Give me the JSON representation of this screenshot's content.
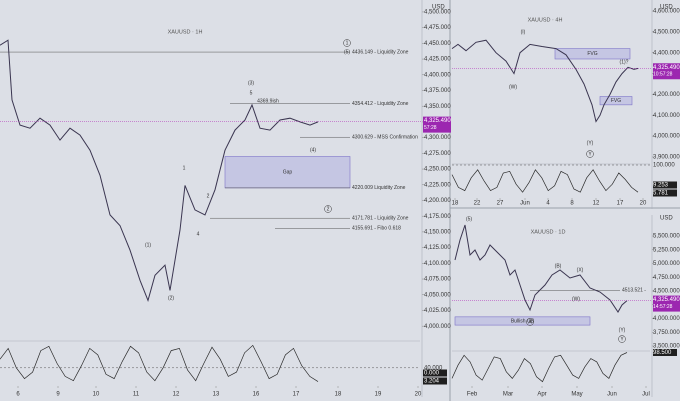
{
  "chart_data": [
    {
      "type": "line",
      "title": "XAUUSD · 1H",
      "currency": "USD",
      "color": "#3a3550",
      "xlim": [
        0,
        105
      ],
      "ylim": [
        3978,
        4519
      ],
      "xticks": [
        {
          "value": 4.5,
          "label": "6"
        },
        {
          "value": 14.5,
          "label": "9"
        },
        {
          "value": 24,
          "label": "10"
        },
        {
          "value": 34,
          "label": "11"
        },
        {
          "value": 44,
          "label": "12"
        },
        {
          "value": 54,
          "label": "13"
        },
        {
          "value": 64,
          "label": "16"
        },
        {
          "value": 74,
          "label": "17"
        },
        {
          "value": 84.5,
          "label": "18"
        },
        {
          "value": 94.5,
          "label": "19"
        },
        {
          "value": 104.5,
          "label": "20"
        }
      ],
      "yticks": [
        {
          "value": 4000,
          "label": "4,000.000"
        },
        {
          "value": 4025,
          "label": "4,025.000"
        },
        {
          "value": 4050,
          "label": "4,050.000"
        },
        {
          "value": 4075,
          "label": "4,075.000"
        },
        {
          "value": 4100,
          "label": "4,100.000"
        },
        {
          "value": 4125,
          "label": "4,125.000"
        },
        {
          "value": 4150,
          "label": "4,150.000"
        },
        {
          "value": 4175,
          "label": "4,175.000"
        },
        {
          "value": 4200,
          "label": "4,200.000"
        },
        {
          "value": 4225,
          "label": "4,225.000"
        },
        {
          "value": 4250,
          "label": "4,250.000"
        },
        {
          "value": 4275,
          "label": "4,275.000"
        },
        {
          "value": 4300,
          "label": "4,300.000"
        },
        {
          "value": 4325,
          "label": "4,325.000"
        },
        {
          "value": 4350,
          "label": "4,350.000"
        },
        {
          "value": 4375,
          "label": "4,375.000"
        },
        {
          "value": 4400,
          "label": "4,400.000"
        },
        {
          "value": 4425,
          "label": "4,425.000"
        },
        {
          "value": 4450,
          "label": "4,450.000"
        },
        {
          "value": 4475,
          "label": "4,475.000"
        },
        {
          "value": 4500,
          "label": "4,500.000"
        }
      ],
      "x": [
        0,
        2,
        3,
        5,
        7.5,
        10,
        12.5,
        15,
        17.5,
        20,
        22.5,
        25,
        27.5,
        30,
        32.5,
        35,
        37,
        38.75,
        41.25,
        42.5,
        45,
        46.25,
        48.75,
        51.25,
        53.75,
        56.25,
        58.75,
        61.25,
        63,
        65,
        67.5,
        70,
        72.5,
        75,
        77.5,
        79.5
      ],
      "values": [
        4447,
        4455,
        4360,
        4320,
        4315,
        4331,
        4320,
        4296,
        4315,
        4304,
        4280,
        4240,
        4177,
        4160,
        4121,
        4073,
        4041,
        4081,
        4097,
        4057,
        4153,
        4224,
        4185,
        4177,
        4217,
        4280,
        4312,
        4328,
        4352,
        4315,
        4312,
        4328,
        4331,
        4325,
        4320,
        4325
      ],
      "last": {
        "value": 4325.49,
        "label": "4,325.490",
        "countdown": "57:28"
      },
      "levels": [
        {
          "value": 4436.149,
          "label": "4436.149 - Liquidity Zone"
        },
        {
          "value": 4354.412,
          "label": "4354.412 - Liquidity Zone"
        },
        {
          "value": 4300.629,
          "label": "4300.629 - MSS Confirmation"
        },
        {
          "value": 4220.009,
          "label": "4220.009 Liquidity Zone"
        },
        {
          "value": 4171.781,
          "label": "4171.781 - Liquidity Zone"
        },
        {
          "value": 4155.691,
          "label": "4155.691 - Fibo 0.618"
        }
      ],
      "zones": [
        {
          "low": 4220.009,
          "high": 4270,
          "label": "Gap"
        }
      ],
      "annotations": [
        "(1)",
        "(2)",
        "1",
        "2",
        "4",
        "(3)",
        "5",
        "(4)",
        "(5)",
        "1",
        "2",
        "4369.9ish"
      ],
      "indicator": {
        "ylim": [
          0,
          100
        ],
        "yticks": [
          {
            "value": 40,
            "label": "40.000"
          }
        ],
        "values": [
          60,
          85,
          40,
          15,
          30,
          80,
          90,
          50,
          20,
          10,
          45,
          85,
          70,
          25,
          15,
          55,
          90,
          75,
          30,
          10,
          40,
          80,
          85,
          35,
          10,
          50,
          88,
          60,
          20,
          30,
          75,
          92,
          55,
          15,
          25,
          70,
          85,
          45,
          20,
          8
        ],
        "readouts": [
          3.204,
          0
        ],
        "readout_labels": [
          "3.204",
          "0.000"
        ]
      }
    },
    {
      "type": "line",
      "title": "XAUUSD · 4H",
      "currency": "USD",
      "color": "#3a3550",
      "xlim": [
        0,
        99
      ],
      "ylim": [
        3871,
        4653
      ],
      "xticks": [
        {
          "value": 1.5,
          "label": "18"
        },
        {
          "value": 12.5,
          "label": "22"
        },
        {
          "value": 24,
          "label": "27"
        },
        {
          "value": 36.5,
          "label": "Jun"
        },
        {
          "value": 48,
          "label": "4"
        },
        {
          "value": 60,
          "label": "8"
        },
        {
          "value": 72,
          "label": "12"
        },
        {
          "value": 84,
          "label": "17"
        },
        {
          "value": 95.5,
          "label": "20"
        }
      ],
      "yticks": [
        {
          "value": 3900,
          "label": "3,900.000"
        },
        {
          "value": 4000,
          "label": "4,000.000"
        },
        {
          "value": 4100,
          "label": "4,100.000"
        },
        {
          "value": 4200,
          "label": "4,200.000"
        },
        {
          "value": 4300,
          "label": "4,300.000"
        },
        {
          "value": 4400,
          "label": "4,400.000"
        },
        {
          "value": 4500,
          "label": "4,500.000"
        },
        {
          "value": 4600,
          "label": "4,600.000"
        }
      ],
      "x": [
        0,
        3,
        7,
        12,
        17,
        22,
        27,
        31,
        34,
        39,
        45,
        52,
        57,
        62,
        66,
        70,
        72,
        74,
        76,
        79,
        82,
        85,
        88,
        91,
        93
      ],
      "values": [
        4420,
        4440,
        4410,
        4450,
        4460,
        4400,
        4360,
        4300,
        4400,
        4440,
        4430,
        4420,
        4390,
        4320,
        4250,
        4150,
        4070,
        4100,
        4150,
        4200,
        4260,
        4300,
        4330,
        4320,
        4325
      ],
      "last": {
        "value": 4325.49,
        "label": "4,325.490",
        "countdown": "10:57:28"
      },
      "levels": [],
      "zones": [
        {
          "low": 4370,
          "high": 4420,
          "label": "FVG"
        },
        {
          "low": 4150,
          "high": 4190,
          "label": "FVG"
        }
      ],
      "annotations": [
        "(I)",
        "(W)",
        "(1)?",
        "(Y)",
        "Y"
      ],
      "indicator": {
        "ylim": [
          0,
          100
        ],
        "yticks": [
          {
            "value": 100,
            "label": "100.000"
          }
        ],
        "values": [
          70,
          30,
          20,
          60,
          85,
          50,
          20,
          30,
          75,
          80,
          40,
          15,
          45,
          85,
          60,
          20,
          35,
          80,
          70,
          25,
          15,
          60,
          85,
          50,
          20,
          40,
          75,
          55,
          30,
          15
        ],
        "readouts": [
          5.781,
          9.253
        ],
        "readout_labels": [
          "5.781",
          "9.253"
        ]
      }
    },
    {
      "type": "line",
      "title": "XAUUSD · 1D",
      "currency": "USD",
      "color": "#3a3550",
      "xlim": [
        0,
        99
      ],
      "ylim": [
        3427,
        5882
      ],
      "xticks": [
        {
          "value": 10,
          "label": "Feb"
        },
        {
          "value": 28,
          "label": "Mar"
        },
        {
          "value": 45,
          "label": "Apr"
        },
        {
          "value": 62.5,
          "label": "May"
        },
        {
          "value": 80,
          "label": "Jun"
        },
        {
          "value": 97,
          "label": "Jul"
        }
      ],
      "yticks": [
        {
          "value": 3500,
          "label": "3,500.000"
        },
        {
          "value": 3750,
          "label": "3,750.000"
        },
        {
          "value": 4000,
          "label": "4,000.000"
        },
        {
          "value": 4250,
          "label": "4,250.000"
        },
        {
          "value": 4500,
          "label": "4,500.000"
        },
        {
          "value": 4750,
          "label": "4,750.000"
        },
        {
          "value": 5000,
          "label": "5,000.000"
        },
        {
          "value": 5250,
          "label": "5,250.000"
        },
        {
          "value": 5500,
          "label": "5,500.000"
        }
      ],
      "x": [
        1.5,
        4,
        6.5,
        9,
        11.5,
        14,
        16.5,
        19,
        21.5,
        24,
        26.5,
        29,
        31.5,
        34,
        36.5,
        39,
        41.5,
        44,
        46.5,
        50,
        54,
        59,
        64,
        69,
        74,
        79,
        83,
        85,
        87.5
      ],
      "values": [
        5064,
        5427,
        5700,
        5155,
        5245,
        5064,
        5155,
        5336,
        5245,
        5155,
        5064,
        4791,
        4882,
        4609,
        4336,
        4155,
        4427,
        4518,
        4609,
        4791,
        4882,
        4736,
        4791,
        4555,
        4482,
        4336,
        4118,
        4245,
        4325.49
      ],
      "last": {
        "value": 4325.49,
        "label": "4,325.490",
        "countdown": "14:57:28"
      },
      "levels": [
        {
          "value": 4513.521,
          "label": "4513.521 -"
        }
      ],
      "zones": [
        {
          "low": 3880,
          "high": 4030,
          "label": "Bullish OB"
        }
      ],
      "annotations": [
        "(5)",
        "(B)",
        "(X)",
        "(W)",
        "A",
        "(Y)",
        "Y"
      ],
      "indicator": {
        "ylim": [
          0,
          100
        ],
        "yticks": [],
        "values": [
          20,
          60,
          90,
          70,
          30,
          15,
          50,
          85,
          80,
          40,
          20,
          45,
          80,
          65,
          25,
          10,
          50,
          85,
          90,
          60,
          30,
          20,
          55,
          80,
          70,
          35,
          20,
          60,
          90,
          98.5
        ],
        "readouts": [
          98.5
        ],
        "readout_labels": [
          "98.500"
        ]
      }
    }
  ]
}
